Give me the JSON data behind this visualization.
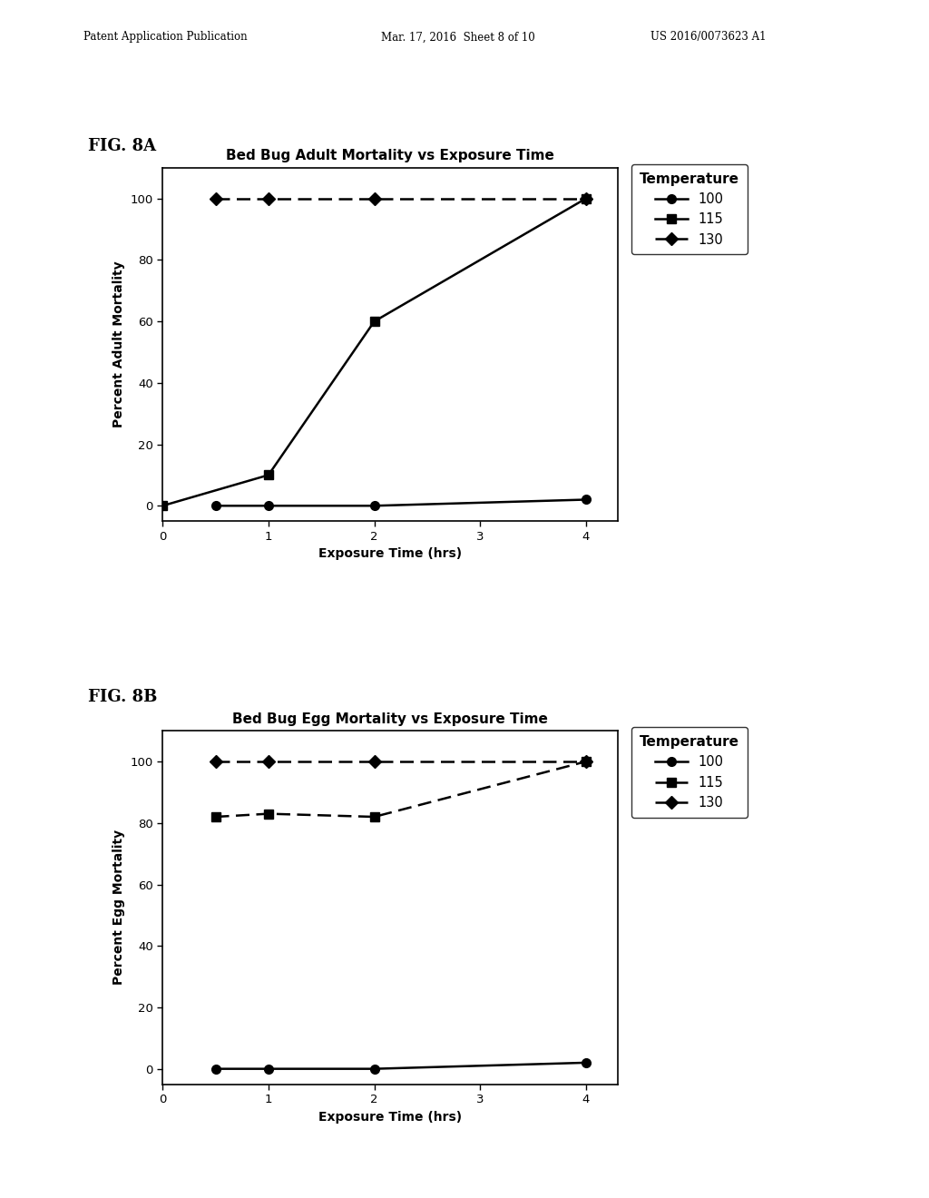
{
  "fig8a": {
    "title": "Bed Bug Adult Mortality vs Exposure Time",
    "xlabel": "Exposure Time (hrs)",
    "ylabel": "Percent Adult Mortality",
    "series": [
      {
        "label": "100",
        "x": [
          0.5,
          1,
          2,
          4
        ],
        "y": [
          0,
          0,
          0,
          2
        ],
        "linestyle": "solid",
        "marker": "o"
      },
      {
        "label": "115",
        "x": [
          0,
          1,
          2,
          4
        ],
        "y": [
          0,
          10,
          60,
          100
        ],
        "linestyle": "solid",
        "marker": "s"
      },
      {
        "label": "130",
        "x": [
          0.5,
          1,
          2,
          4
        ],
        "y": [
          100,
          100,
          100,
          100
        ],
        "linestyle": "dashed",
        "marker": "D"
      }
    ],
    "xlim": [
      0,
      4.3
    ],
    "ylim": [
      -5,
      110
    ],
    "xticks": [
      0,
      1,
      2,
      3,
      4
    ],
    "yticks": [
      0,
      20,
      40,
      60,
      80,
      100
    ]
  },
  "fig8b": {
    "title": "Bed Bug Egg Mortality vs Exposure Time",
    "xlabel": "Exposure Time (hrs)",
    "ylabel": "Percent Egg Mortality",
    "series": [
      {
        "label": "100",
        "x": [
          0.5,
          1,
          2,
          4
        ],
        "y": [
          0,
          0,
          0,
          2
        ],
        "linestyle": "solid",
        "marker": "o"
      },
      {
        "label": "115",
        "x": [
          0.5,
          1,
          2,
          4
        ],
        "y": [
          82,
          83,
          82,
          100
        ],
        "linestyle": "dashed",
        "marker": "s"
      },
      {
        "label": "130",
        "x": [
          0.5,
          1,
          2,
          4
        ],
        "y": [
          100,
          100,
          100,
          100
        ],
        "linestyle": "dashed",
        "marker": "D"
      }
    ],
    "xlim": [
      0,
      4.3
    ],
    "ylim": [
      -5,
      110
    ],
    "xticks": [
      0,
      1,
      2,
      3,
      4
    ],
    "yticks": [
      0,
      20,
      40,
      60,
      80,
      100
    ]
  },
  "header_left": "Patent Application Publication",
  "header_mid": "Mar. 17, 2016  Sheet 8 of 10",
  "header_right": "US 2016/0073623 A1",
  "legend_title": "Temperature",
  "fig8a_label": "FIG. 8A",
  "fig8b_label": "FIG. 8B",
  "background_color": "#ffffff",
  "line_color": "#000000",
  "marker_size": 7,
  "linewidth": 1.8
}
